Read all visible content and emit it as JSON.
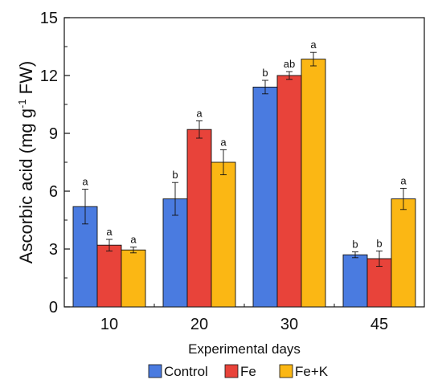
{
  "chart_data": {
    "type": "bar",
    "title": "",
    "xlabel": "Experimental days",
    "ylabel_main": "Ascorbic acid (mg g",
    "ylabel_sup": "-1",
    "ylabel_tail": " FW)",
    "ylim": [
      0,
      15
    ],
    "yticks": [
      "0",
      "3",
      "6",
      "9",
      "12",
      "15"
    ],
    "categories": [
      "10",
      "20",
      "30",
      "45"
    ],
    "legend_position": "bottom",
    "series": [
      {
        "name": "Control",
        "color": "#4A7BE0",
        "values": [
          5.2,
          5.6,
          11.4,
          2.7
        ],
        "errors": [
          0.9,
          0.85,
          0.35,
          0.15
        ],
        "labels": [
          "a",
          "b",
          "b",
          "b"
        ]
      },
      {
        "name": "Fe",
        "color": "#E8433A",
        "values": [
          3.2,
          9.2,
          12.0,
          2.5
        ],
        "errors": [
          0.3,
          0.45,
          0.2,
          0.4
        ],
        "labels": [
          "a",
          "a",
          "ab",
          "b"
        ]
      },
      {
        "name": "Fe+K",
        "color": "#FBB714",
        "values": [
          2.95,
          7.5,
          12.85,
          5.6
        ],
        "errors": [
          0.15,
          0.65,
          0.35,
          0.55
        ],
        "labels": [
          "a",
          "a",
          "a",
          "a"
        ]
      }
    ]
  }
}
